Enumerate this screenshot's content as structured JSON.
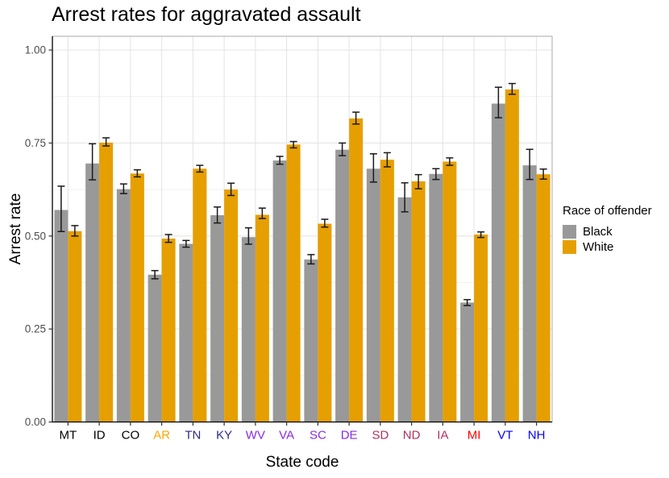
{
  "chart_data": {
    "type": "bar",
    "title": "Arrest rates for aggravated assault",
    "xlabel": "State code",
    "ylabel": "Arrest rate",
    "ylim": [
      0,
      1.037
    ],
    "yticks": [
      0,
      0.25,
      0.5,
      0.75,
      1.0
    ],
    "ytick_labels": [
      "0.00",
      "0.25",
      "0.50",
      "0.75",
      "1.00"
    ],
    "grid": true,
    "legend_position": "right",
    "legend_title": "Race of offender",
    "categories": [
      "MT",
      "ID",
      "CO",
      "AR",
      "TN",
      "KY",
      "WV",
      "VA",
      "SC",
      "DE",
      "SD",
      "ND",
      "IA",
      "MI",
      "VT",
      "NH"
    ],
    "category_colors": [
      "#000000",
      "#000000",
      "#000000",
      "#FFA500",
      "#2B2B8A",
      "#2B2B8A",
      "#8A2BE2",
      "#8A2BE2",
      "#8A2BE2",
      "#8A2BE2",
      "#B03060",
      "#B03060",
      "#B03060",
      "#FF0000",
      "#0000FF",
      "#0000FF"
    ],
    "series": [
      {
        "name": "Black",
        "color": "#999999",
        "values": [
          0.57,
          0.695,
          0.626,
          0.396,
          0.479,
          0.556,
          0.497,
          0.703,
          0.437,
          0.732,
          0.681,
          0.604,
          0.667,
          0.321,
          0.856,
          0.69
        ],
        "err_low": [
          0.512,
          0.651,
          0.614,
          0.385,
          0.47,
          0.535,
          0.478,
          0.693,
          0.425,
          0.716,
          0.645,
          0.565,
          0.652,
          0.313,
          0.818,
          0.652
        ],
        "err_high": [
          0.634,
          0.748,
          0.64,
          0.407,
          0.488,
          0.578,
          0.522,
          0.714,
          0.45,
          0.75,
          0.721,
          0.643,
          0.681,
          0.329,
          0.9,
          0.733
        ]
      },
      {
        "name": "White",
        "color": "#E69F00",
        "values": [
          0.513,
          0.751,
          0.668,
          0.493,
          0.681,
          0.625,
          0.557,
          0.746,
          0.533,
          0.816,
          0.705,
          0.647,
          0.7,
          0.504,
          0.894,
          0.666
        ],
        "err_low": [
          0.5,
          0.742,
          0.659,
          0.483,
          0.672,
          0.609,
          0.547,
          0.737,
          0.524,
          0.801,
          0.686,
          0.627,
          0.69,
          0.496,
          0.881,
          0.653
        ],
        "err_high": [
          0.528,
          0.764,
          0.678,
          0.504,
          0.69,
          0.642,
          0.575,
          0.754,
          0.545,
          0.833,
          0.724,
          0.665,
          0.71,
          0.511,
          0.91,
          0.68
        ]
      }
    ],
    "colors": {
      "grid_major": "#E3E3E3",
      "grid_minor": "#F0F0F0",
      "panel_border": "#A8A8A8",
      "axis_line": "#000000",
      "error_bar": "#1a1a1a",
      "ytick_label": "#4D4D4D"
    }
  }
}
